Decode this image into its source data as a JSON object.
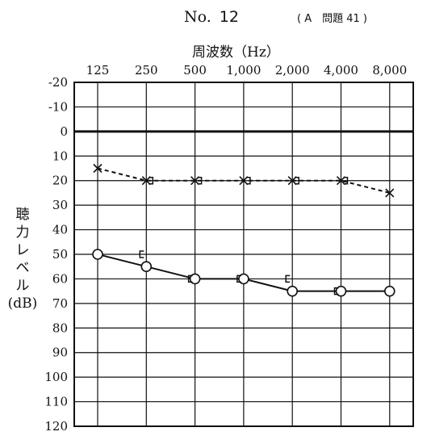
{
  "header": {
    "prefix": "No.",
    "number": "12",
    "reference": "( A　問題 41 )"
  },
  "chart_data": {
    "type": "line",
    "xlabel": "周波数（Hz）",
    "ylabel_lines": [
      "聴",
      "力",
      "レ",
      "ベ",
      "ル",
      "(dB)"
    ],
    "x": [
      "125",
      "250",
      "500",
      "1,000",
      "2,000",
      "4,000",
      "8,000"
    ],
    "y_ticks": [
      "-20",
      "-10",
      "0",
      "10",
      "20",
      "30",
      "40",
      "50",
      "60",
      "70",
      "80",
      "90",
      "100",
      "110",
      "120"
    ],
    "ylim": [
      -20,
      120
    ],
    "y_inverted": true,
    "grid": true,
    "series": [
      {
        "marker": "x",
        "style": "dashed",
        "x": [
          "125",
          "250",
          "500",
          "1,000",
          "2,000",
          "4,000",
          "8,000"
        ],
        "values": [
          15,
          20,
          20,
          20,
          20,
          20,
          25
        ]
      },
      {
        "marker": "bone-conduction-right-bracket",
        "style": "none",
        "x": [
          "250",
          "500",
          "1,000",
          "2,000",
          "4,000"
        ],
        "values": [
          20,
          20,
          20,
          20,
          20
        ]
      },
      {
        "marker": "o",
        "style": "solid",
        "x": [
          "125",
          "250",
          "500",
          "1,000",
          "2,000",
          "4,000",
          "8,000"
        ],
        "values": [
          50,
          55,
          60,
          60,
          65,
          65,
          65
        ]
      },
      {
        "marker": "bone-conduction-left-bracket",
        "style": "none",
        "x": [
          "250",
          "500",
          "1,000",
          "2,000",
          "4,000"
        ],
        "values": [
          50,
          60,
          60,
          60,
          65
        ]
      }
    ]
  }
}
